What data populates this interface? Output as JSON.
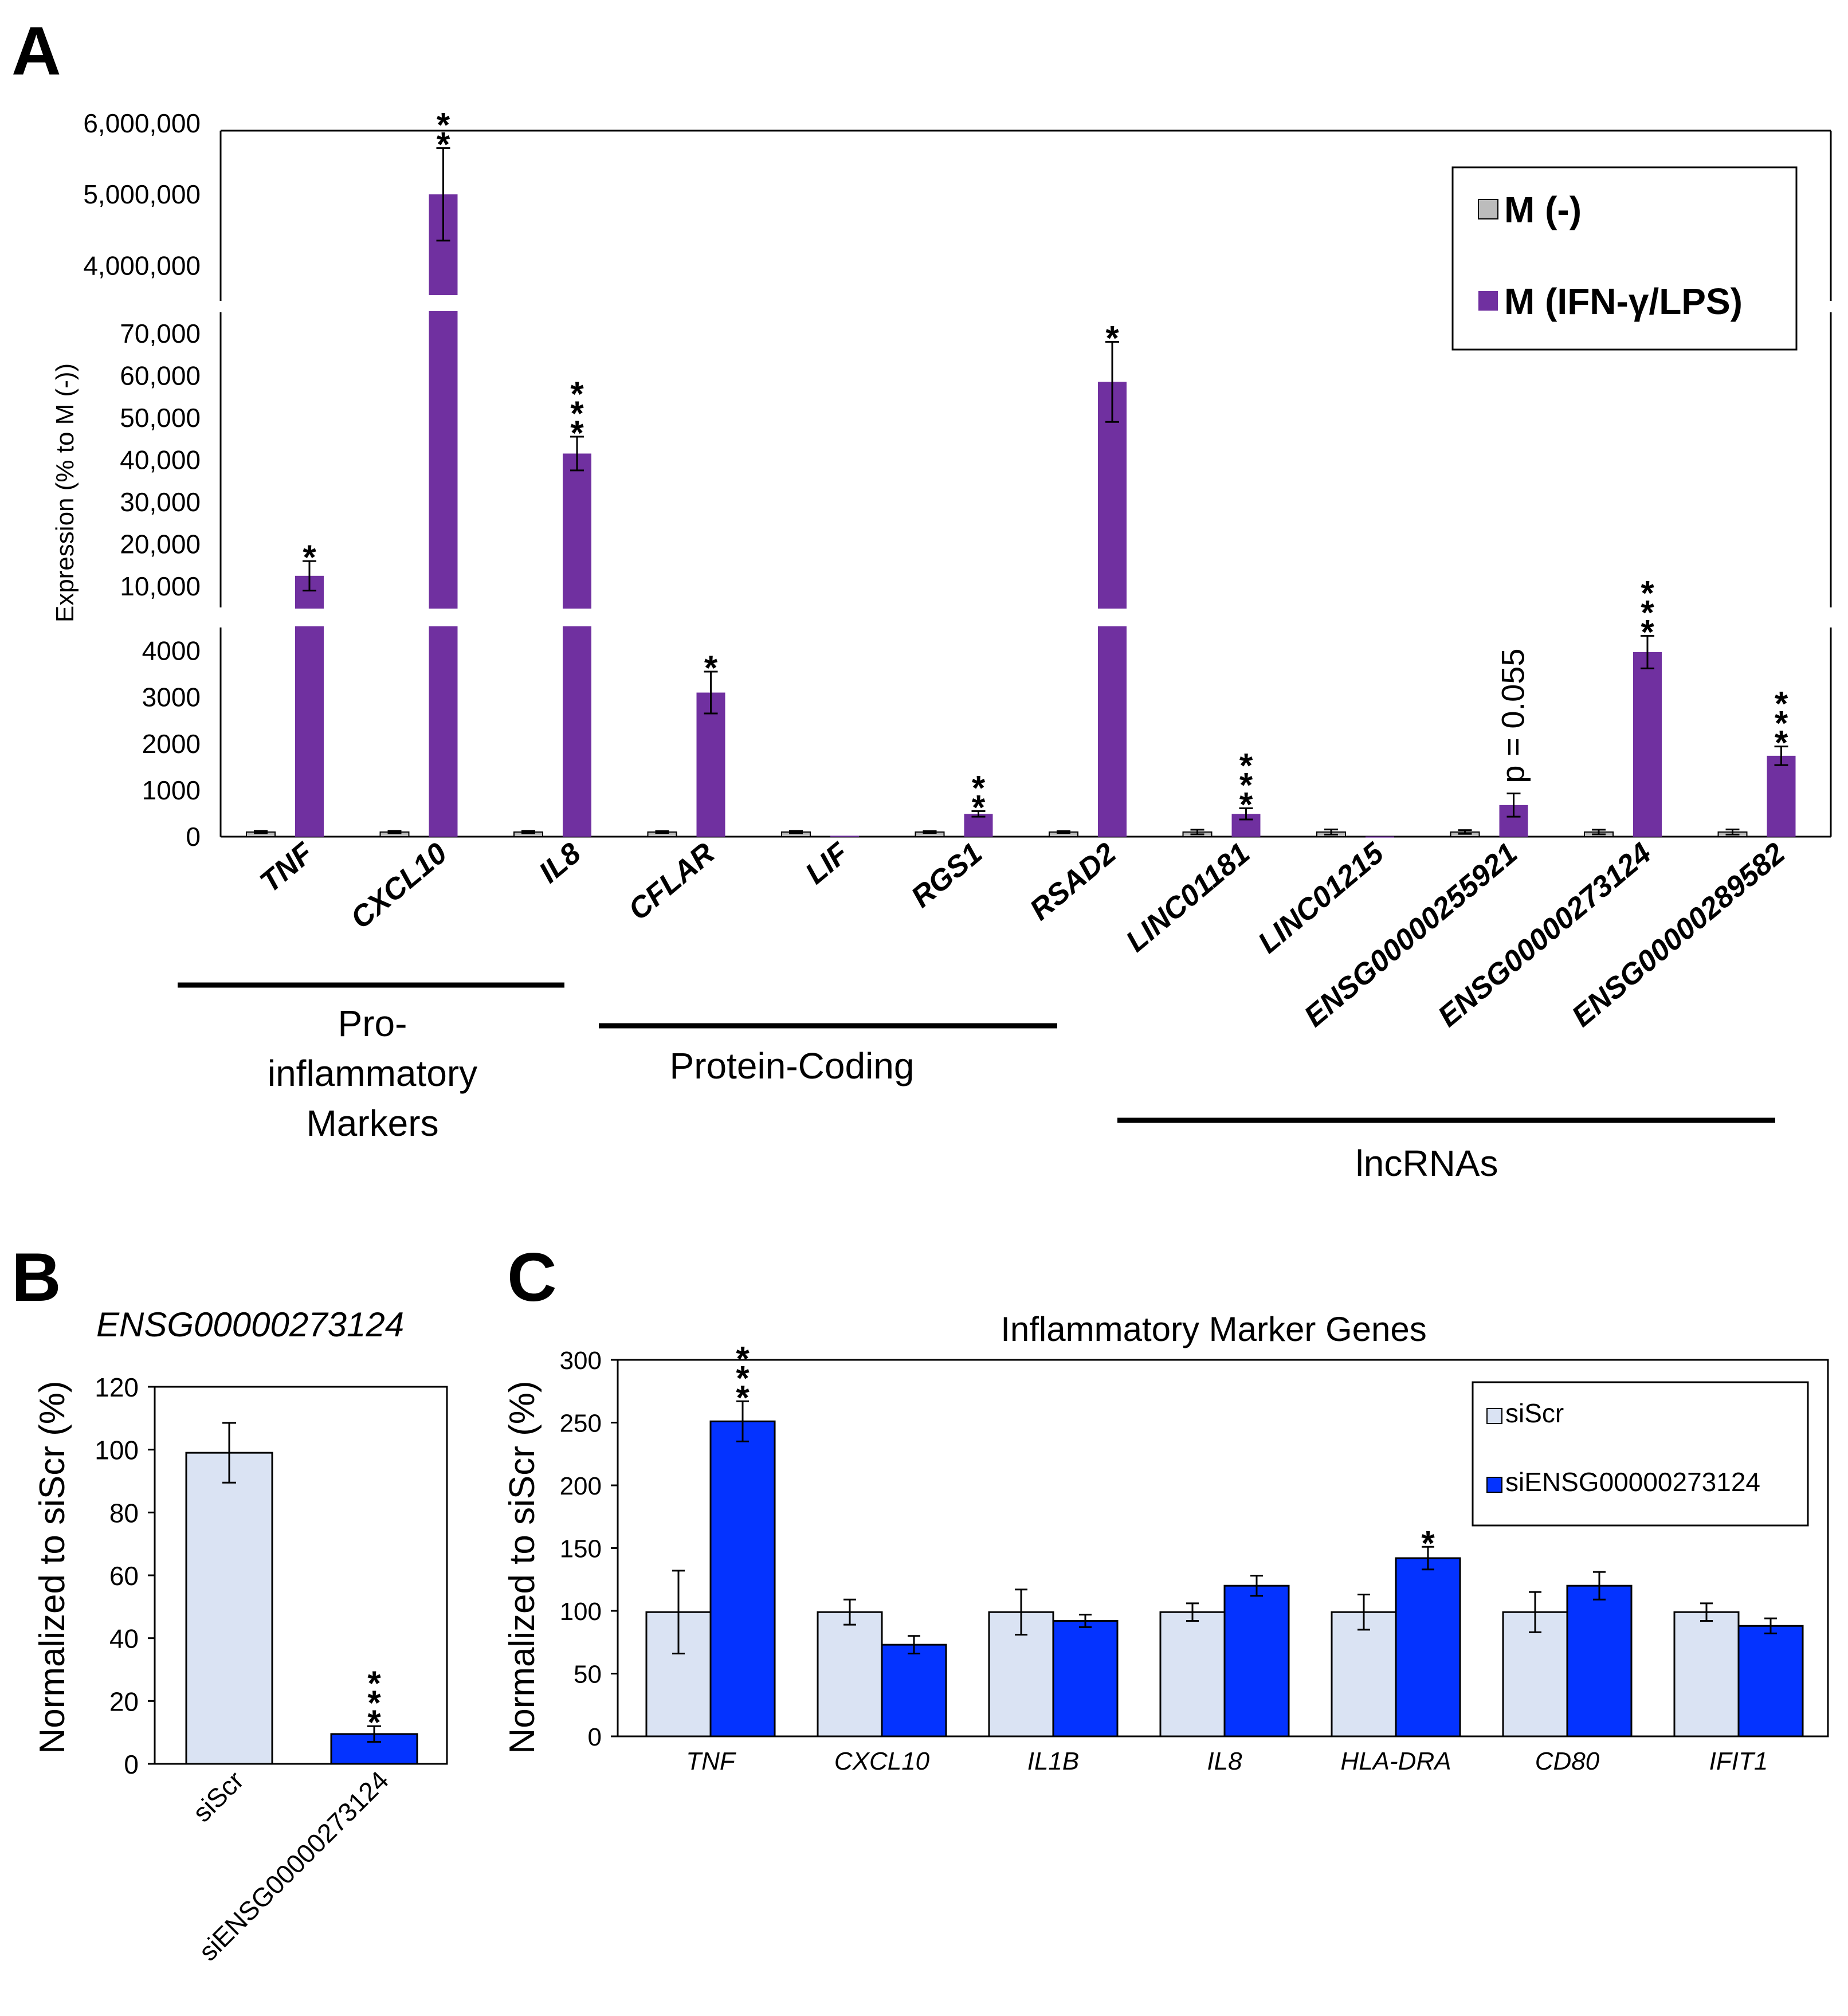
{
  "panels": {
    "A": "A",
    "B": "B",
    "C": "C"
  },
  "chart_data": [
    {
      "panel": "A",
      "type": "bar",
      "title": "",
      "ylabel": "Expression (% to M (-))",
      "y_axis": "broken",
      "segments": [
        {
          "range": [
            0,
            4500
          ],
          "ticks": [
            0,
            1000,
            2000,
            3000,
            4000
          ],
          "tick_labels": [
            "0",
            "1000",
            "2000",
            "3000",
            "4000"
          ]
        },
        {
          "range": [
            5000,
            75000
          ],
          "ticks": [
            10000,
            20000,
            30000,
            40000,
            50000,
            60000,
            70000
          ],
          "tick_labels": [
            "10,000",
            "20,000",
            "30,000",
            "40,000",
            "50,000",
            "60,000",
            "70,000"
          ]
        },
        {
          "range": [
            3600000,
            6000000
          ],
          "ticks": [
            4000000,
            5000000,
            6000000
          ],
          "tick_labels": [
            "4,000,000",
            "5,000,000",
            "6,000,000"
          ]
        }
      ],
      "categories": [
        "TNF",
        "CXCL10",
        "IL8",
        "CFLAR",
        "LIF",
        "RGS1",
        "RSAD2",
        "LINC01181",
        "LINC01215",
        "ENSG00000255921",
        "ENSG00000273124",
        "ENSG00000289582"
      ],
      "series": [
        {
          "name": "M (-)",
          "color": "#bcbcbc",
          "values": [
            100,
            100,
            100,
            100,
            100,
            100,
            100,
            100,
            100,
            100,
            100,
            100
          ],
          "errors": [
            25,
            25,
            25,
            20,
            25,
            20,
            20,
            50,
            55,
            40,
            50,
            55
          ]
        },
        {
          "name": "M (IFN-γ/LPS)",
          "color": "#7030a0",
          "values": [
            12500,
            5000000,
            41500,
            3100,
            20,
            490,
            58500,
            490,
            5,
            680,
            3970,
            1740
          ],
          "errors": [
            3500,
            650000,
            4000,
            450,
            10,
            60,
            9500,
            120,
            5,
            250,
            350,
            200
          ]
        }
      ],
      "significance": [
        "*",
        "**",
        "***",
        "*",
        "",
        "**",
        "*",
        "***",
        "",
        "",
        "***",
        "***"
      ],
      "annotations": [
        {
          "category": "ENSG00000255921",
          "text": "p = 0.055"
        }
      ],
      "groups": [
        {
          "label_lines": [
            "Pro-",
            "inflammatory",
            "Markers"
          ],
          "categories": [
            "TNF",
            "CXCL10",
            "IL8"
          ]
        },
        {
          "label_lines": [
            "Protein-Coding"
          ],
          "categories": [
            "CFLAR",
            "LIF",
            "RGS1",
            "RSAD2"
          ]
        },
        {
          "label_lines": [
            "lncRNAs"
          ],
          "categories": [
            "LINC01181",
            "LINC01215",
            "ENSG00000255921",
            "ENSG00000273124",
            "ENSG00000289582"
          ]
        }
      ],
      "legend": {
        "position": "top-right",
        "entries": [
          "M (-)",
          "M (IFN-γ/LPS)"
        ]
      }
    },
    {
      "panel": "B",
      "type": "bar",
      "title": "ENSG00000273124",
      "ylabel": "Normalized to siScr (%)",
      "ylim": [
        0,
        120
      ],
      "yticks": [
        0,
        20,
        40,
        60,
        80,
        100,
        120
      ],
      "categories": [
        "siScr",
        "siENSG00000273124"
      ],
      "values": [
        99,
        9.5
      ],
      "errors": [
        9.5,
        2.5
      ],
      "colors": [
        "#dae3f3",
        "#0433ff"
      ],
      "significance": [
        "",
        "***"
      ]
    },
    {
      "panel": "C",
      "type": "bar",
      "title": "Inflammatory Marker Genes",
      "ylabel": "Normalized to siScr (%)",
      "ylim": [
        0,
        300
      ],
      "yticks": [
        0,
        50,
        100,
        150,
        200,
        250,
        300
      ],
      "categories": [
        "TNF",
        "CXCL10",
        "IL1B",
        "IL8",
        "HLA-DRA",
        "CD80",
        "IFIT1"
      ],
      "series": [
        {
          "name": "siScr",
          "color": "#dae3f3",
          "values": [
            99,
            99,
            99,
            99,
            99,
            99,
            99
          ],
          "errors": [
            33,
            10,
            18,
            7,
            14,
            16,
            7
          ]
        },
        {
          "name": "siENSG00000273124",
          "color": "#0433ff",
          "values": [
            251,
            73,
            92,
            120,
            142,
            120,
            88
          ],
          "errors": [
            16,
            7,
            5,
            8,
            9,
            11,
            6
          ]
        }
      ],
      "significance": [
        "***",
        "",
        "",
        "",
        "*",
        "",
        ""
      ],
      "legend": {
        "position": "top-right",
        "entries": [
          "siScr",
          "siENSG00000273124"
        ]
      }
    }
  ]
}
